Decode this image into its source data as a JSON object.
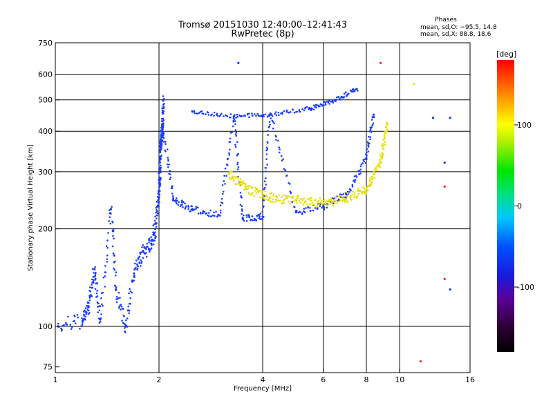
{
  "chart_data": {
    "type": "scatter",
    "title": "Tromsø 20151030 12:40:00–12:41:43",
    "subtitle": "RwPretec (8p)",
    "xlabel": "Frequency [MHz]",
    "ylabel": "Stationary phase Virtual Height [km]",
    "x_scale": "log",
    "y_scale": "log",
    "xlim": [
      1,
      16
    ],
    "ylim": [
      72,
      750
    ],
    "xticks": [
      1,
      2,
      4,
      6,
      8,
      10,
      16
    ],
    "yticks": [
      75,
      100,
      200,
      300,
      400,
      500,
      600,
      750
    ],
    "grid": true,
    "grid_x": [
      2,
      4,
      6,
      8,
      10
    ],
    "grid_y": [
      100,
      200,
      300,
      400,
      500,
      600
    ],
    "info": {
      "header": "Phases",
      "line_o": "mean, sd,O: −95.5, 14.8",
      "line_x": "mean, sd,X:  88.8, 18.6"
    },
    "colorbar": {
      "unit": "[deg]",
      "ticks": [
        100,
        0,
        -100
      ],
      "range": [
        -180,
        180
      ],
      "colormap": "rainbow"
    },
    "series_points": [
      {
        "x": 1.02,
        "y": 100,
        "phase": -95
      },
      {
        "x": 1.2,
        "y": 104,
        "phase": -100
      },
      {
        "x": 1.25,
        "y": 115,
        "phase": -98
      },
      {
        "x": 1.3,
        "y": 150,
        "phase": -100
      },
      {
        "x": 1.35,
        "y": 105,
        "phase": -90
      },
      {
        "x": 1.45,
        "y": 230,
        "phase": -95
      },
      {
        "x": 1.5,
        "y": 130,
        "phase": -100
      },
      {
        "x": 1.6,
        "y": 100,
        "phase": -100
      },
      {
        "x": 1.7,
        "y": 150,
        "phase": -100
      },
      {
        "x": 1.8,
        "y": 170,
        "phase": -100
      },
      {
        "x": 1.9,
        "y": 180,
        "phase": -100
      },
      {
        "x": 1.95,
        "y": 200,
        "phase": -100
      },
      {
        "x": 2.0,
        "y": 250,
        "phase": -100
      },
      {
        "x": 2.02,
        "y": 350,
        "phase": -100
      },
      {
        "x": 2.05,
        "y": 420,
        "phase": -100
      },
      {
        "x": 2.06,
        "y": 500,
        "phase": -100
      },
      {
        "x": 2.2,
        "y": 245,
        "phase": -100
      },
      {
        "x": 2.5,
        "y": 230,
        "phase": -100
      },
      {
        "x": 3.0,
        "y": 220,
        "phase": -100
      },
      {
        "x": 3.5,
        "y": 215,
        "phase": -100
      },
      {
        "x": 4.0,
        "y": 218,
        "phase": -100
      },
      {
        "x": 5.0,
        "y": 225,
        "phase": -100
      },
      {
        "x": 6.0,
        "y": 235,
        "phase": -100
      },
      {
        "x": 7.0,
        "y": 255,
        "phase": -100
      },
      {
        "x": 8.0,
        "y": 330,
        "phase": -100
      },
      {
        "x": 8.4,
        "y": 450,
        "phase": -100
      },
      {
        "x": 2.5,
        "y": 460,
        "phase": -100
      },
      {
        "x": 3.3,
        "y": 445,
        "phase": -100
      },
      {
        "x": 4.2,
        "y": 450,
        "phase": -100
      },
      {
        "x": 5.5,
        "y": 470,
        "phase": -95
      },
      {
        "x": 6.5,
        "y": 500,
        "phase": -100
      },
      {
        "x": 7.5,
        "y": 540,
        "phase": -100
      },
      {
        "x": 3.2,
        "y": 295,
        "phase": 95
      },
      {
        "x": 3.6,
        "y": 265,
        "phase": 95
      },
      {
        "x": 4.2,
        "y": 250,
        "phase": 105
      },
      {
        "x": 5.0,
        "y": 245,
        "phase": 120
      },
      {
        "x": 6.0,
        "y": 240,
        "phase": 95
      },
      {
        "x": 7.0,
        "y": 250,
        "phase": 95
      },
      {
        "x": 8.0,
        "y": 265,
        "phase": 90
      },
      {
        "x": 8.8,
        "y": 320,
        "phase": 95
      },
      {
        "x": 9.2,
        "y": 420,
        "phase": 100
      },
      {
        "x": 3.4,
        "y": 650,
        "phase": -100
      },
      {
        "x": 8.8,
        "y": 650,
        "phase": 160
      },
      {
        "x": 11.0,
        "y": 560,
        "phase": 110
      },
      {
        "x": 12.5,
        "y": 440,
        "phase": -100
      },
      {
        "x": 14.0,
        "y": 440,
        "phase": -100
      },
      {
        "x": 13.5,
        "y": 320,
        "phase": -100
      },
      {
        "x": 13.5,
        "y": 270,
        "phase": 150
      },
      {
        "x": 13.5,
        "y": 140,
        "phase": 150
      },
      {
        "x": 14.0,
        "y": 130,
        "phase": -100
      },
      {
        "x": 11.5,
        "y": 78,
        "phase": 160
      }
    ]
  }
}
